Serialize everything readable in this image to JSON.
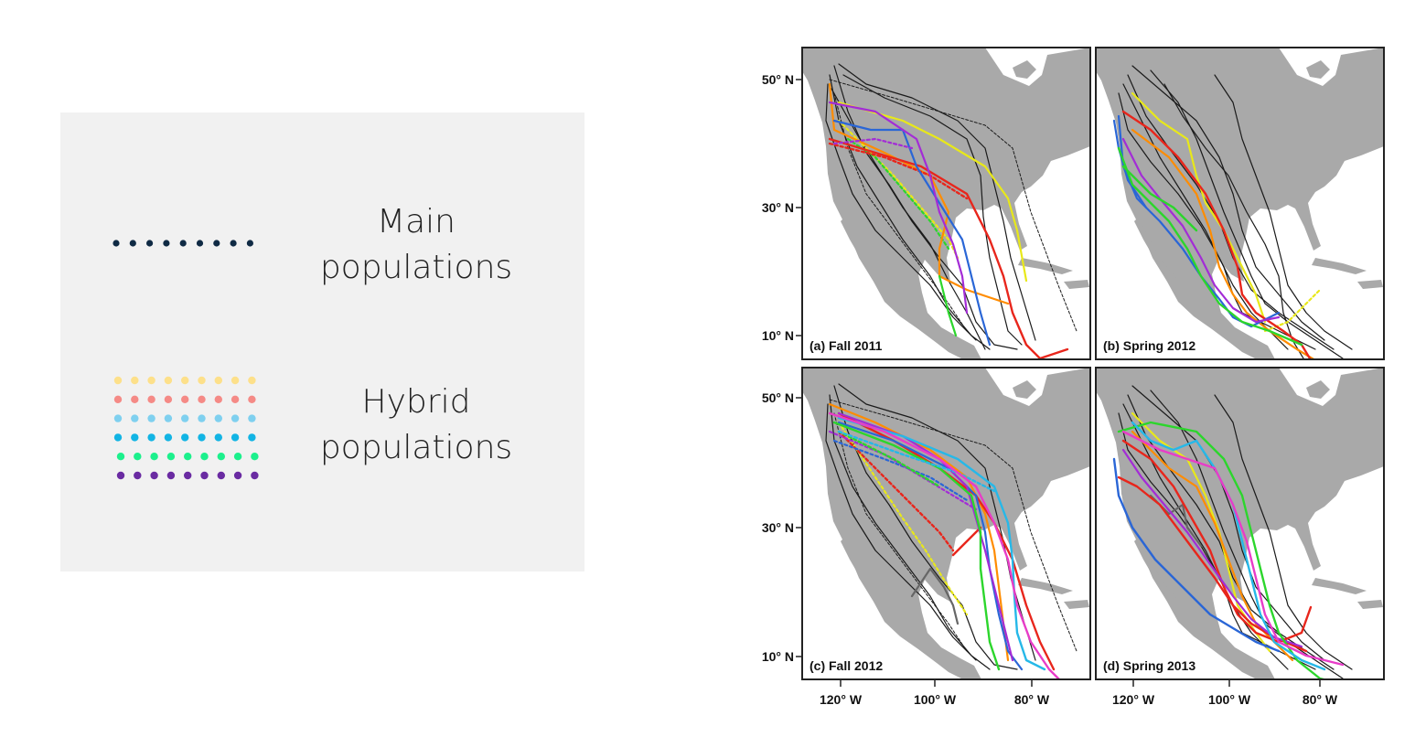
{
  "legend": {
    "main": {
      "line1": "Main",
      "line2": "populations",
      "color": "#0f2a44"
    },
    "hybrid": {
      "line1": "Hybrid",
      "line2": "populations",
      "colors": [
        "#fde08a",
        "#f58a86",
        "#7fd0ef",
        "#12b4e4",
        "#1cf08c",
        "#6a2ba2"
      ]
    }
  },
  "figure": {
    "land_color": "#a9a9a9",
    "sea_color": "#ffffff",
    "panels": [
      {
        "id": "a",
        "label": "(a) Fall 2011"
      },
      {
        "id": "b",
        "label": "(b) Spring 2012"
      },
      {
        "id": "c",
        "label": "(c) Fall 2012"
      },
      {
        "id": "d",
        "label": "(d) Spring 2013"
      }
    ],
    "lat_ticks": [
      "50° N",
      "30° N",
      "10° N",
      "50° N",
      "30° N",
      "10° N"
    ],
    "lon_ticks": [
      "120° W",
      "100° W",
      "80° W",
      "120° W",
      "100° W",
      "80° W"
    ],
    "track_colors": [
      "#1a1a1a",
      "#e8e81a",
      "#ff8c00",
      "#e8261c",
      "#2a66d6",
      "#a32cd6",
      "#2cd62c",
      "#26b8e8",
      "#e83cc8",
      "#666666"
    ]
  }
}
